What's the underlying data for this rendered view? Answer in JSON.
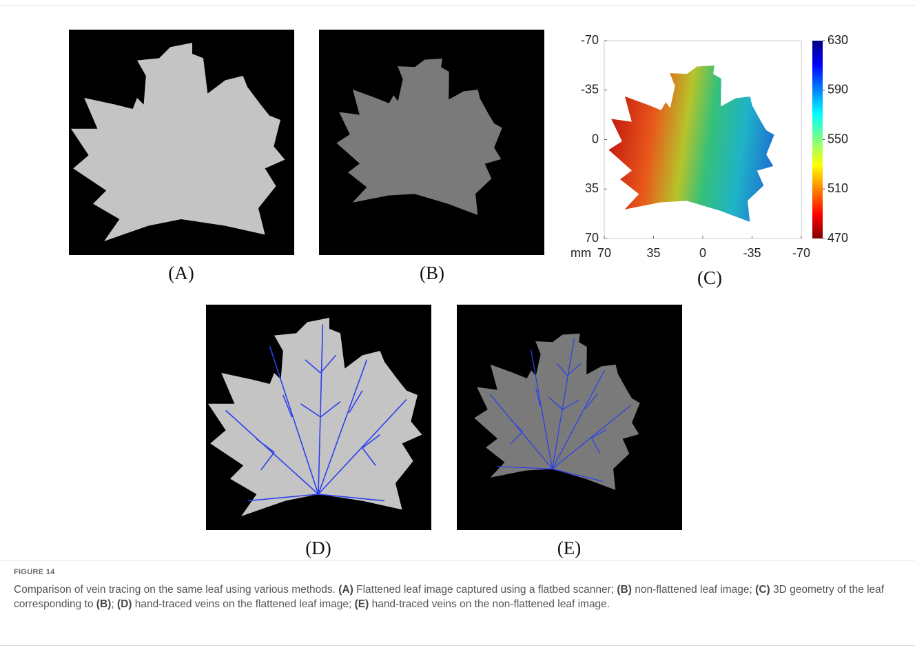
{
  "panels": [
    {
      "label": "(A)"
    },
    {
      "label": "(B)"
    },
    {
      "label": "(C)"
    },
    {
      "label": "(D)"
    },
    {
      "label": "(E)"
    }
  ],
  "panel_c": {
    "xlim": [
      70,
      -70
    ],
    "ylim": [
      -70,
      70
    ],
    "xticks": [
      70,
      35,
      0,
      -35,
      -70
    ],
    "yticks": [
      -70,
      -35,
      0,
      35,
      70
    ],
    "clim": [
      470,
      630
    ],
    "colorbar_ticks": [
      470,
      510,
      550,
      590,
      630
    ],
    "x_unit": "mm"
  },
  "caption": {
    "figure_label": "FIGURE 14",
    "parts": [
      "Comparison of vein tracing on the same leaf using various methods. ",
      "(A)",
      " Flattened leaf image captured using a flatbed scanner; ",
      "(B)",
      " non-flattened leaf image; ",
      "(C)",
      " 3D geometry of the leaf corresponding to ",
      "(B)",
      "; ",
      "(D)",
      " hand-traced veins on the flattened leaf image; ",
      "(E)",
      " hand-traced veins on the non-flattened leaf image."
    ]
  }
}
